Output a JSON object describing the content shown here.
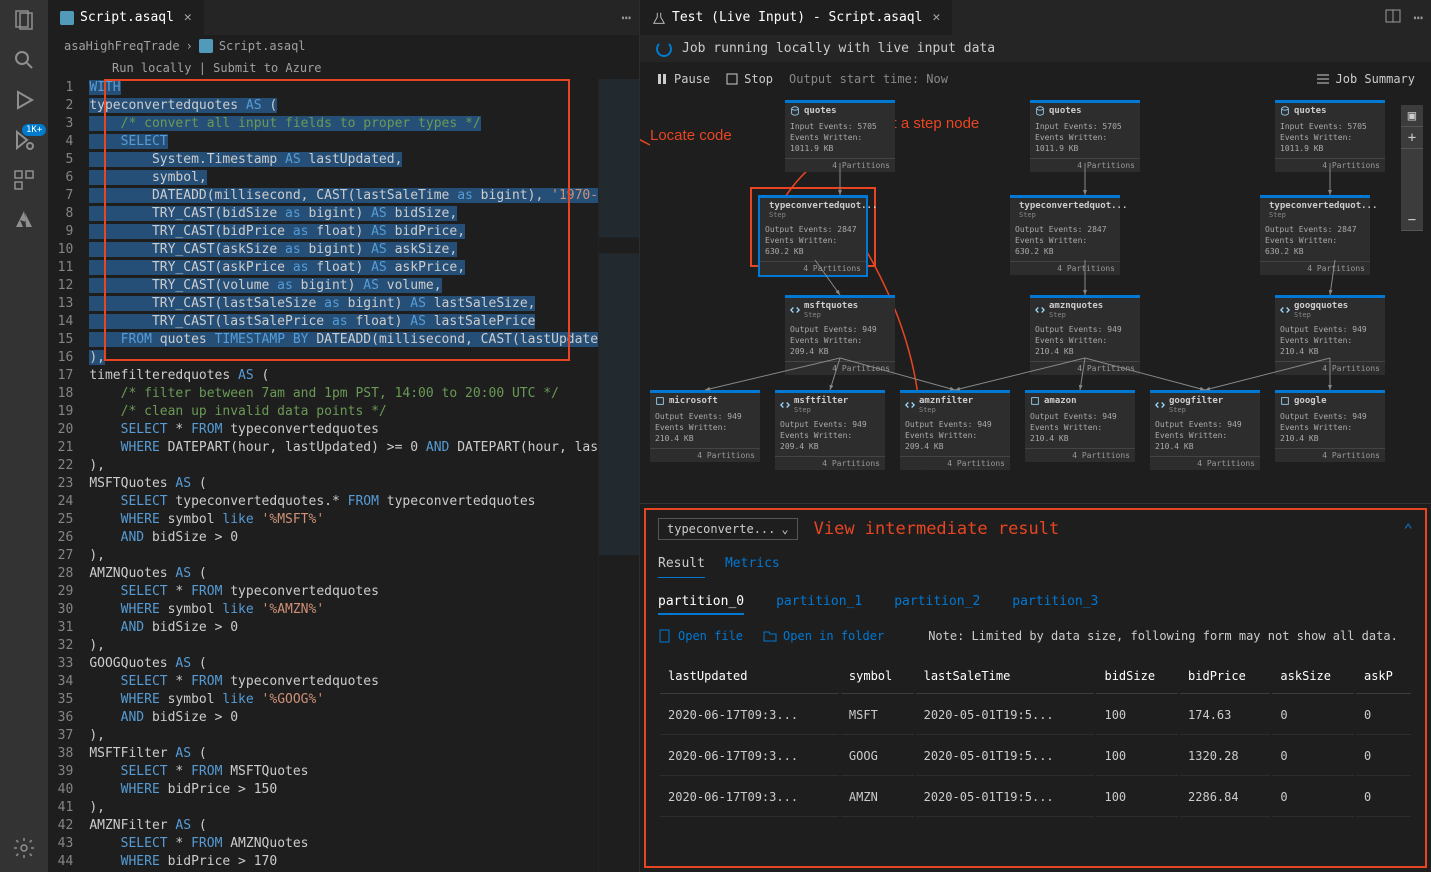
{
  "editor": {
    "tab_title": "Script.asaql",
    "breadcrumb_root": "asaHighFreqTrade",
    "breadcrumb_file": "Script.asaql",
    "run_bar": "Run locally  | Submit to Azure",
    "lines": [
      {
        "n": 1,
        "html": "<span class='sel-bg'><span class='kw'>WITH</span></span>"
      },
      {
        "n": 2,
        "html": "<span class='sel-bg'>typeconvertedquotes <span class='kw'>AS</span> (</span>"
      },
      {
        "n": 3,
        "html": "<span class='sel-bg'>    <span class='cmt'>/* convert all input fields to proper types */</span></span>"
      },
      {
        "n": 4,
        "html": "<span class='sel-bg'>    <span class='kw'>SELECT</span></span>"
      },
      {
        "n": 5,
        "html": "<span class='sel-bg'>        System.Timestamp <span class='kw'>AS</span> lastUpdated,</span>"
      },
      {
        "n": 6,
        "html": "<span class='sel-bg'>        symbol,</span>"
      },
      {
        "n": 7,
        "html": "<span class='sel-bg'>        DATEADD(millisecond, CAST(lastSaleTime <span class='kw'>as</span> bigint), <span class='str'>'1970-</span></span>"
      },
      {
        "n": 8,
        "html": "<span class='sel-bg'>        TRY_CAST(bidSize <span class='kw'>as</span> bigint) <span class='kw'>AS</span> bidSize,</span>"
      },
      {
        "n": 9,
        "html": "<span class='sel-bg'>        TRY_CAST(bidPrice <span class='kw'>as</span> float) <span class='kw'>AS</span> bidPrice,</span>"
      },
      {
        "n": 10,
        "html": "<span class='sel-bg'>        TRY_CAST(askSize <span class='kw'>as</span> bigint) <span class='kw'>AS</span> askSize,</span>"
      },
      {
        "n": 11,
        "html": "<span class='sel-bg'>        TRY_CAST(askPrice <span class='kw'>as</span> float) <span class='kw'>AS</span> askPrice,</span>"
      },
      {
        "n": 12,
        "html": "<span class='sel-bg'>        TRY_CAST(volume <span class='kw'>as</span> bigint) <span class='kw'>AS</span> volume,</span>"
      },
      {
        "n": 13,
        "html": "<span class='sel-bg'>        TRY_CAST(lastSaleSize <span class='kw'>as</span> bigint) <span class='kw'>AS</span> lastSaleSize,</span>"
      },
      {
        "n": 14,
        "html": "<span class='sel-bg'>        TRY_CAST(lastSalePrice <span class='kw'>as</span> float) <span class='kw'>AS</span> lastSalePrice</span>"
      },
      {
        "n": 15,
        "html": "<span class='sel-bg'>    <span class='kw'>FROM</span> quotes <span class='kw'>TIMESTAMP BY</span> DATEADD(millisecond, CAST(lastUpdate</span>"
      },
      {
        "n": 16,
        "html": "<span class='sel-bg'>),</span>"
      },
      {
        "n": 17,
        "html": "timefilteredquotes <span class='kw'>AS</span> ("
      },
      {
        "n": 18,
        "html": "    <span class='cmt'>/* filter between 7am and 1pm PST, 14:00 to 20:00 UTC */</span>"
      },
      {
        "n": 19,
        "html": "    <span class='cmt'>/* clean up invalid data points */</span>"
      },
      {
        "n": 20,
        "html": "    <span class='kw'>SELECT</span> * <span class='kw'>FROM</span> typeconvertedquotes"
      },
      {
        "n": 21,
        "html": "    <span class='kw'>WHERE</span> DATEPART(hour, lastUpdated) >= 0 <span class='kw'>AND</span> DATEPART(hour, las"
      },
      {
        "n": 22,
        "html": "),"
      },
      {
        "n": 23,
        "html": "MSFTQuotes <span class='kw'>AS</span> ("
      },
      {
        "n": 24,
        "html": "    <span class='kw'>SELECT</span> typeconvertedquotes.* <span class='kw'>FROM</span> typeconvertedquotes"
      },
      {
        "n": 25,
        "html": "    <span class='kw'>WHERE</span> symbol <span class='kw'>like</span> <span class='str'>'%MSFT%'</span>"
      },
      {
        "n": 26,
        "html": "    <span class='kw'>AND</span> bidSize > 0"
      },
      {
        "n": 27,
        "html": "),"
      },
      {
        "n": 28,
        "html": "AMZNQuotes <span class='kw'>AS</span> ("
      },
      {
        "n": 29,
        "html": "    <span class='kw'>SELECT</span> * <span class='kw'>FROM</span> typeconvertedquotes"
      },
      {
        "n": 30,
        "html": "    <span class='kw'>WHERE</span> symbol <span class='kw'>like</span> <span class='str'>'%AMZN%'</span>"
      },
      {
        "n": 31,
        "html": "    <span class='kw'>AND</span> bidSize > 0"
      },
      {
        "n": 32,
        "html": "),"
      },
      {
        "n": 33,
        "html": "GOOGQuotes <span class='kw'>AS</span> ("
      },
      {
        "n": 34,
        "html": "    <span class='kw'>SELECT</span> * <span class='kw'>FROM</span> typeconvertedquotes"
      },
      {
        "n": 35,
        "html": "    <span class='kw'>WHERE</span> symbol <span class='kw'>like</span> <span class='str'>'%GOOG%'</span>"
      },
      {
        "n": 36,
        "html": "    <span class='kw'>AND</span> bidSize > 0"
      },
      {
        "n": 37,
        "html": "),"
      },
      {
        "n": 38,
        "html": "MSFTFilter <span class='kw'>AS</span> ("
      },
      {
        "n": 39,
        "html": "    <span class='kw'>SELECT</span> * <span class='kw'>FROM</span> MSFTQuotes"
      },
      {
        "n": 40,
        "html": "    <span class='kw'>WHERE</span> bidPrice > 150"
      },
      {
        "n": 41,
        "html": "),"
      },
      {
        "n": 42,
        "html": "AMZNFilter <span class='kw'>AS</span> ("
      },
      {
        "n": 43,
        "html": "    <span class='kw'>SELECT</span> * <span class='kw'>FROM</span> AMZNQuotes"
      },
      {
        "n": 44,
        "html": "    <span class='kw'>WHERE</span> bidPrice > 170"
      }
    ]
  },
  "test_panel": {
    "tab_title": "Test (Live Input) - Script.asaql",
    "status_text": "Job running locally with live input data",
    "pause_label": "Pause",
    "stop_label": "Stop",
    "start_time_label": "Output start time: Now",
    "job_summary_label": "Job Summary",
    "annotations": {
      "locate": "Locate code",
      "select": "Select a step node",
      "view": "View intermediate result"
    },
    "nodes": {
      "quotes": {
        "title": "quotes",
        "sub": "",
        "l1": "Input Events: 5705",
        "l2": "Events Written: 1011.9 KB",
        "ftr": "4 Partitions"
      },
      "typeconv": {
        "title": "typeconvertedquot...",
        "sub": "Step",
        "l1": "Output Events: 2847",
        "l2": "Events Written: 630.2 KB",
        "ftr": "4 Partitions"
      },
      "msftq": {
        "title": "msftquotes",
        "sub": "Step",
        "l1": "Output Events: 949",
        "l2": "Events Written: 209.4 KB",
        "ftr": "4 Partitions"
      },
      "amznq": {
        "title": "amznquotes",
        "sub": "Step",
        "l1": "Output Events: 949",
        "l2": "Events Written: 210.4 KB",
        "ftr": "4 Partitions"
      },
      "googq": {
        "title": "googquotes",
        "sub": "Step",
        "l1": "Output Events: 949",
        "l2": "Events Written: 210.4 KB",
        "ftr": "4 Partitions"
      },
      "microsoft": {
        "title": "microsoft",
        "sub": "",
        "l1": "Output Events: 949",
        "l2": "Events Written: 210.4 KB",
        "ftr": "4 Partitions"
      },
      "msftfilter": {
        "title": "msftfilter",
        "sub": "Step",
        "l1": "Output Events: 949",
        "l2": "Events Written: 209.4 KB",
        "ftr": "4 Partitions"
      },
      "amznfilter": {
        "title": "amznfilter",
        "sub": "Step",
        "l1": "Output Events: 949",
        "l2": "Events Written: 209.4 KB",
        "ftr": "4 Partitions"
      },
      "amazon": {
        "title": "amazon",
        "sub": "",
        "l1": "Output Events: 949",
        "l2": "Events Written: 210.4 KB",
        "ftr": "4 Partitions"
      },
      "googfilter": {
        "title": "googfilter",
        "sub": "Step",
        "l1": "Output Events: 949",
        "l2": "Events Written: 210.4 KB",
        "ftr": "4 Partitions"
      },
      "google": {
        "title": "google",
        "sub": "",
        "l1": "Output Events: 949",
        "l2": "Events Written: 210.4 KB",
        "ftr": "4 Partitions"
      }
    },
    "results": {
      "select_value": "typeconverte...",
      "result_tab": "Result",
      "metrics_tab": "Metrics",
      "partitions": [
        "partition_0",
        "partition_1",
        "partition_2",
        "partition_3"
      ],
      "open_file": "Open file",
      "open_folder": "Open in folder",
      "note": "Note: Limited by data size, following form may not show all data.",
      "columns": [
        "lastUpdated",
        "symbol",
        "lastSaleTime",
        "bidSize",
        "bidPrice",
        "askSize",
        "askP"
      ],
      "rows": [
        [
          "2020-06-17T09:3...",
          "MSFT",
          "2020-05-01T19:5...",
          "100",
          "174.63",
          "0",
          "0"
        ],
        [
          "2020-06-17T09:3...",
          "GOOG",
          "2020-05-01T19:5...",
          "100",
          "1320.28",
          "0",
          "0"
        ],
        [
          "2020-06-17T09:3...",
          "AMZN",
          "2020-05-01T19:5...",
          "100",
          "2286.84",
          "0",
          "0"
        ]
      ]
    }
  },
  "activity_badge": "1K+"
}
